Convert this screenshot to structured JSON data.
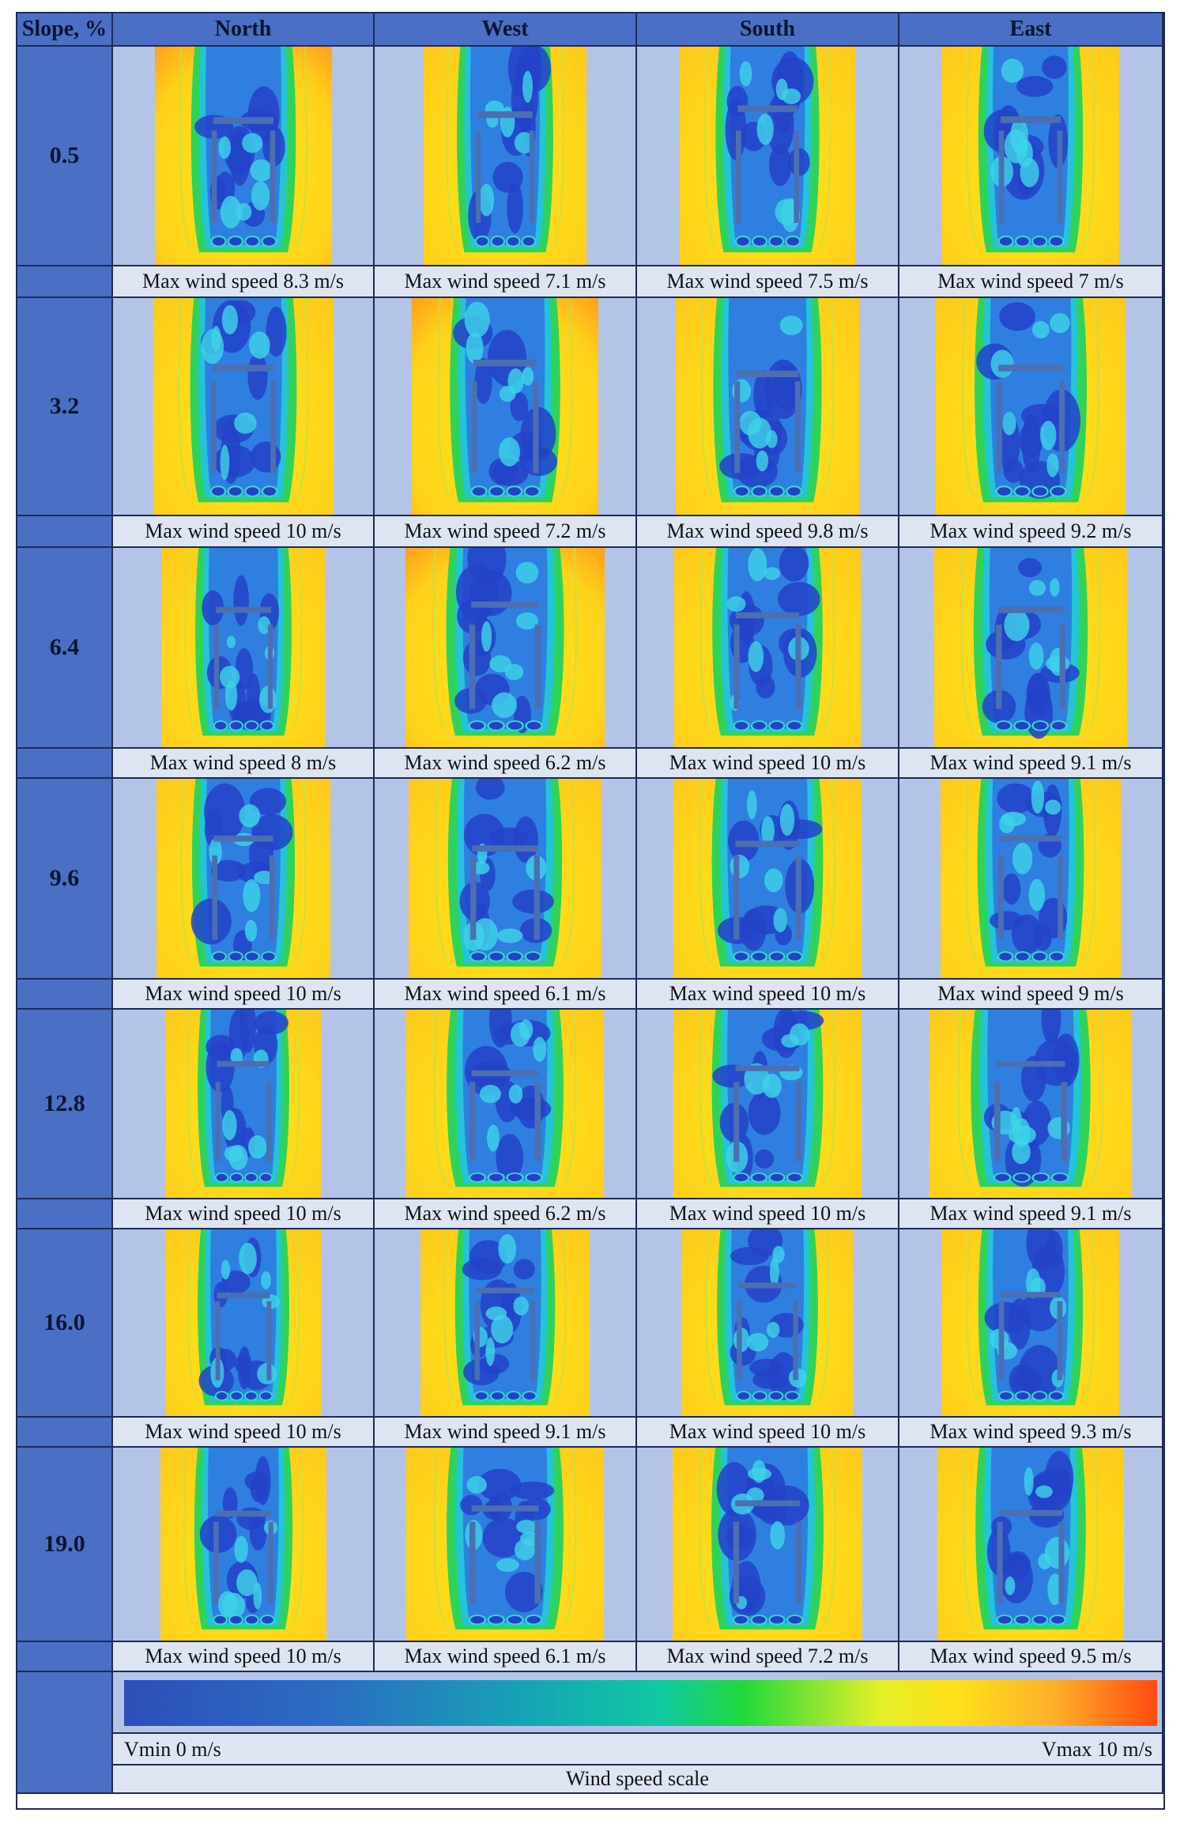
{
  "headers": {
    "slope": "Slope, %",
    "north": "North",
    "west": "West",
    "south": "South",
    "east": "East"
  },
  "rows": [
    {
      "slope": "0.5",
      "north": "Max wind speed 8.3 m/s",
      "west": "Max wind speed 7.1 m/s",
      "south": "Max wind speed 7.5 m/s",
      "east": "Max wind speed 7 m/s"
    },
    {
      "slope": "3.2",
      "north": "Max wind speed 10 m/s",
      "west": "Max wind speed 7.2 m/s",
      "south": "Max wind speed 9.8 m/s",
      "east": "Max wind speed 9.2 m/s"
    },
    {
      "slope": "6.4",
      "north": "Max wind speed 8 m/s",
      "west": "Max wind speed 6.2 m/s",
      "south": "Max wind speed 10 m/s",
      "east": "Max wind speed 9.1 m/s"
    },
    {
      "slope": "9.6",
      "north": "Max wind speed 10 m/s",
      "west": "Max wind speed 6.1 m/s",
      "south": "Max wind speed 10 m/s",
      "east": "Max wind speed 9 m/s"
    },
    {
      "slope": "12.8",
      "north": "Max wind speed 10 m/s",
      "west": "Max wind speed 6.2 m/s",
      "south": "Max wind speed 10 m/s",
      "east": "Max wind speed 9.1 m/s"
    },
    {
      "slope": "16.0",
      "north": "Max wind speed 10 m/s",
      "west": "Max wind speed 9.1 m/s",
      "south": "Max wind speed 10 m/s",
      "east": "Max wind speed 9.3 m/s"
    },
    {
      "slope": "19.0",
      "north": "Max wind speed 10 m/s",
      "west": "Max wind speed 6.1 m/s",
      "south": "Max wind speed 7.2 m/s",
      "east": "Max wind speed 9.5 m/s"
    }
  ],
  "scale": {
    "vmin": "Vmin 0 m/s",
    "vmax": "Vmax 10 m/s",
    "caption": "Wind speed scale"
  },
  "colors": {
    "header_bg": "#4a6fc4",
    "cell_bg": "#b4c4e6",
    "caption_bg": "#dde5f3",
    "field_yellow": "#ffe21a",
    "field_orange": "#ff9a1a",
    "flow_blue": "#2b55d0",
    "flow_cyan": "#1fb8e6",
    "flow_green": "#3ed65a"
  }
}
